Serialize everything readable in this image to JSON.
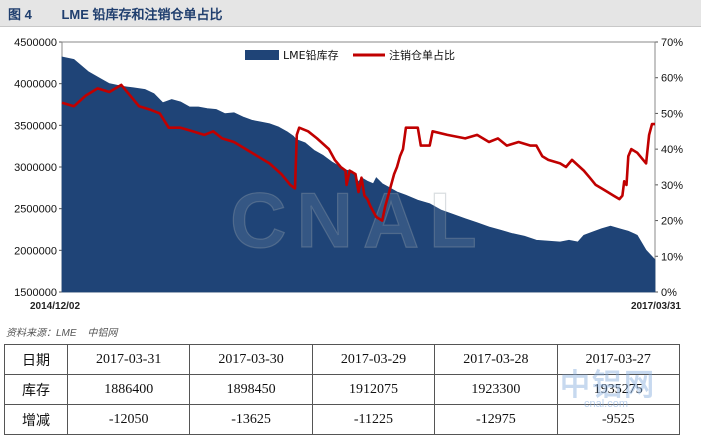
{
  "figure": {
    "number": "图 4",
    "title": "LME 铅库存和注销仓单占比"
  },
  "chart_data": {
    "type": "area",
    "left_axis": {
      "min": 1500000,
      "max": 4500000,
      "ticks": [
        "4500000",
        "4000000",
        "3500000",
        "3000000",
        "2500000",
        "2000000",
        "1500000"
      ]
    },
    "right_axis": {
      "min": 0,
      "max": 70,
      "ticks": [
        "70%",
        "60%",
        "50%",
        "40%",
        "30%",
        "20%",
        "10%",
        "0%"
      ]
    },
    "x_labels": {
      "start": "2014/12/02",
      "end": "2017/03/31"
    },
    "legend_position": "top-center",
    "series": [
      {
        "name": "LME铅库存",
        "kind": "area",
        "color": "#1f4477",
        "axis": "left",
        "points": [
          [
            0.0,
            4320000
          ],
          [
            0.02,
            4290000
          ],
          [
            0.045,
            4140000
          ],
          [
            0.065,
            4060000
          ],
          [
            0.08,
            4000000
          ],
          [
            0.1,
            3970000
          ],
          [
            0.12,
            3950000
          ],
          [
            0.14,
            3930000
          ],
          [
            0.155,
            3880000
          ],
          [
            0.17,
            3770000
          ],
          [
            0.185,
            3810000
          ],
          [
            0.2,
            3780000
          ],
          [
            0.215,
            3720000
          ],
          [
            0.23,
            3720000
          ],
          [
            0.245,
            3700000
          ],
          [
            0.26,
            3690000
          ],
          [
            0.275,
            3640000
          ],
          [
            0.29,
            3650000
          ],
          [
            0.305,
            3600000
          ],
          [
            0.32,
            3560000
          ],
          [
            0.335,
            3540000
          ],
          [
            0.35,
            3520000
          ],
          [
            0.365,
            3480000
          ],
          [
            0.38,
            3420000
          ],
          [
            0.39,
            3370000
          ],
          [
            0.395,
            3330000
          ],
          [
            0.41,
            3290000
          ],
          [
            0.425,
            3200000
          ],
          [
            0.44,
            3140000
          ],
          [
            0.455,
            3060000
          ],
          [
            0.47,
            3000000
          ],
          [
            0.48,
            2960000
          ],
          [
            0.49,
            2950000
          ],
          [
            0.5,
            2820000
          ],
          [
            0.505,
            2870000
          ],
          [
            0.515,
            2830000
          ],
          [
            0.525,
            2800000
          ],
          [
            0.53,
            2870000
          ],
          [
            0.54,
            2800000
          ],
          [
            0.55,
            2760000
          ],
          [
            0.565,
            2700000
          ],
          [
            0.58,
            2660000
          ],
          [
            0.6,
            2600000
          ],
          [
            0.62,
            2560000
          ],
          [
            0.64,
            2480000
          ],
          [
            0.66,
            2430000
          ],
          [
            0.68,
            2380000
          ],
          [
            0.7,
            2330000
          ],
          [
            0.72,
            2280000
          ],
          [
            0.74,
            2240000
          ],
          [
            0.76,
            2200000
          ],
          [
            0.78,
            2170000
          ],
          [
            0.8,
            2120000
          ],
          [
            0.82,
            2110000
          ],
          [
            0.84,
            2100000
          ],
          [
            0.855,
            2120000
          ],
          [
            0.87,
            2100000
          ],
          [
            0.88,
            2180000
          ],
          [
            0.895,
            2220000
          ],
          [
            0.91,
            2260000
          ],
          [
            0.925,
            2290000
          ],
          [
            0.94,
            2260000
          ],
          [
            0.955,
            2230000
          ],
          [
            0.97,
            2180000
          ],
          [
            0.985,
            2000000
          ],
          [
            1.0,
            1886400
          ]
        ]
      },
      {
        "name": "注销仓单占比",
        "kind": "line",
        "color": "#c00000",
        "axis": "right",
        "points": [
          [
            0.0,
            53
          ],
          [
            0.02,
            52
          ],
          [
            0.04,
            55
          ],
          [
            0.06,
            57
          ],
          [
            0.08,
            56
          ],
          [
            0.1,
            58
          ],
          [
            0.115,
            55
          ],
          [
            0.13,
            52
          ],
          [
            0.15,
            51
          ],
          [
            0.165,
            50
          ],
          [
            0.18,
            46
          ],
          [
            0.2,
            46
          ],
          [
            0.22,
            45
          ],
          [
            0.24,
            44
          ],
          [
            0.255,
            45
          ],
          [
            0.27,
            43
          ],
          [
            0.29,
            42
          ],
          [
            0.31,
            40
          ],
          [
            0.33,
            38
          ],
          [
            0.35,
            36
          ],
          [
            0.37,
            33
          ],
          [
            0.385,
            30
          ],
          [
            0.393,
            29
          ],
          [
            0.396,
            44
          ],
          [
            0.4,
            46
          ],
          [
            0.415,
            45
          ],
          [
            0.43,
            43
          ],
          [
            0.45,
            40
          ],
          [
            0.46,
            37
          ],
          [
            0.47,
            35
          ],
          [
            0.478,
            34
          ],
          [
            0.48,
            30
          ],
          [
            0.485,
            34
          ],
          [
            0.495,
            33
          ],
          [
            0.5,
            28
          ],
          [
            0.505,
            32
          ],
          [
            0.51,
            27
          ],
          [
            0.515,
            26
          ],
          [
            0.52,
            24
          ],
          [
            0.53,
            21
          ],
          [
            0.54,
            20
          ],
          [
            0.545,
            24
          ],
          [
            0.55,
            27
          ],
          [
            0.56,
            33
          ],
          [
            0.565,
            35
          ],
          [
            0.57,
            38
          ],
          [
            0.575,
            40
          ],
          [
            0.58,
            46
          ],
          [
            0.6,
            46
          ],
          [
            0.605,
            41
          ],
          [
            0.62,
            41
          ],
          [
            0.625,
            45
          ],
          [
            0.65,
            44
          ],
          [
            0.68,
            43
          ],
          [
            0.7,
            44
          ],
          [
            0.72,
            42
          ],
          [
            0.735,
            43
          ],
          [
            0.75,
            41
          ],
          [
            0.77,
            42
          ],
          [
            0.79,
            41
          ],
          [
            0.8,
            41
          ],
          [
            0.81,
            38
          ],
          [
            0.82,
            37
          ],
          [
            0.84,
            36
          ],
          [
            0.85,
            35
          ],
          [
            0.86,
            37
          ],
          [
            0.88,
            34
          ],
          [
            0.89,
            32
          ],
          [
            0.9,
            30
          ],
          [
            0.91,
            29
          ],
          [
            0.92,
            28
          ],
          [
            0.93,
            27
          ],
          [
            0.94,
            26
          ],
          [
            0.945,
            27
          ],
          [
            0.948,
            31
          ],
          [
            0.952,
            30
          ],
          [
            0.955,
            38
          ],
          [
            0.96,
            40
          ],
          [
            0.97,
            39
          ],
          [
            0.975,
            38
          ],
          [
            0.985,
            36
          ],
          [
            0.99,
            44
          ],
          [
            0.995,
            47
          ],
          [
            1.0,
            47
          ]
        ]
      }
    ],
    "watermark": "CNAL"
  },
  "source_note": {
    "label": "资料来源：LME",
    "org": "中铝网"
  },
  "table": {
    "row_headers": [
      "日期",
      "库存",
      "增减"
    ],
    "dates": [
      "2017-03-31",
      "2017-03-30",
      "2017-03-29",
      "2017-03-28",
      "2017-03-27"
    ],
    "stock": [
      "1886400",
      "1898450",
      "1912075",
      "1923300",
      "1935275"
    ],
    "change": [
      "-12050",
      "-13625",
      "-11225",
      "-12975",
      "-9525"
    ]
  },
  "site_watermark": {
    "name": "中铝网",
    "url": "cnal.com"
  }
}
